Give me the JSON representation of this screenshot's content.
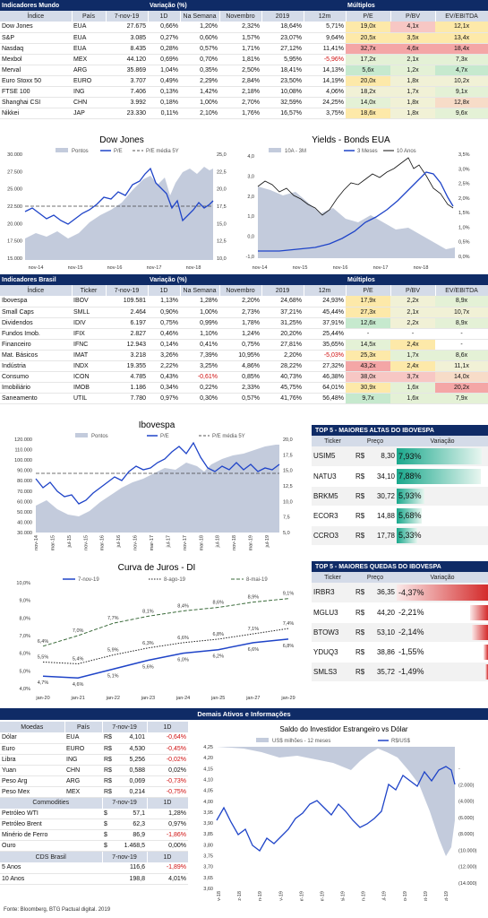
{
  "mundo": {
    "title": "Indicadores Mundo",
    "var_title": "Variação (%)",
    "mult_title": "Múltiplos",
    "cols": [
      "Índice",
      "País",
      "7-nov-19",
      "1D",
      "Na Semana",
      "Novembro",
      "2019",
      "12m",
      "P/E",
      "P/BV",
      "EV/EBITDA"
    ],
    "rows": [
      [
        "Dow Jones",
        "EUA",
        "27.675",
        "0,66%",
        "1,20%",
        "2,32%",
        "18,64%",
        "5,71%",
        "19,0x",
        "4,1x",
        "12,1x"
      ],
      [
        "S&P",
        "EUA",
        "3.085",
        "0,27%",
        "0,60%",
        "1,57%",
        "23,07%",
        "9,64%",
        "20,5x",
        "3,5x",
        "13,4x"
      ],
      [
        "Nasdaq",
        "EUA",
        "8.435",
        "0,28%",
        "0,57%",
        "1,71%",
        "27,12%",
        "11,41%",
        "32,7x",
        "4,6x",
        "18,4x"
      ],
      [
        "Mexbol",
        "MEX",
        "44.120",
        "0,69%",
        "0,70%",
        "1,81%",
        "5,95%",
        "-5,96%",
        "17,2x",
        "2,1x",
        "7,3x"
      ],
      [
        "Merval",
        "ARG",
        "35.869",
        "1,04%",
        "0,35%",
        "2,50%",
        "18,41%",
        "14,13%",
        "5,6x",
        "1,2x",
        "4,7x"
      ],
      [
        "Euro Stoxx 50",
        "EURO",
        "3.707",
        "0,49%",
        "2,29%",
        "2,84%",
        "23,50%",
        "14,19%",
        "20,0x",
        "1,8x",
        "10,2x"
      ],
      [
        "FTSE 100",
        "ING",
        "7.406",
        "0,13%",
        "1,42%",
        "2,18%",
        "10,08%",
        "4,06%",
        "18,2x",
        "1,7x",
        "9,1x"
      ],
      [
        "Shanghai CSI",
        "CHN",
        "3.992",
        "0,18%",
        "1,00%",
        "2,70%",
        "32,59%",
        "24,25%",
        "14,0x",
        "1,8x",
        "12,8x"
      ],
      [
        "Nikkei",
        "JAP",
        "23.330",
        "0,11%",
        "2,10%",
        "1,76%",
        "16,57%",
        "3,75%",
        "18,6x",
        "1,8x",
        "9,6x"
      ]
    ],
    "mult_colors": [
      [
        "#fde9a9",
        "#f7c7c4",
        "#fde9a9"
      ],
      [
        "#fde9a9",
        "#fde9a9",
        "#fde9a9"
      ],
      [
        "#f4a6a6",
        "#f4a6a6",
        "#f4a6a6"
      ],
      [
        "#e4f1d6",
        "#e4f1d6",
        "#e4f1d6"
      ],
      [
        "#c6e9ce",
        "#e4f1d6",
        "#c6e9ce"
      ],
      [
        "#fde9a9",
        "#f1f1d6",
        "#f1f1d6"
      ],
      [
        "#f1f1d6",
        "#f1f1d6",
        "#e4f1d6"
      ],
      [
        "#e4f1d6",
        "#f1f1d6",
        "#f7dcc8"
      ],
      [
        "#fde9a9",
        "#f1f1d6",
        "#e4f1d6"
      ]
    ]
  },
  "dow_chart": {
    "title": "Dow Jones",
    "legend": [
      "Pontos",
      "P/E",
      "P/E média 5Y"
    ],
    "y_left": [
      "30.000",
      "27.500",
      "25.000",
      "22.500",
      "20.000",
      "17.500",
      "15.000"
    ],
    "y_right": [
      "25,0",
      "22,5",
      "20,0",
      "17,5",
      "15,0",
      "12,5",
      "10,0"
    ],
    "x": [
      "nov-14",
      "nov-15",
      "nov-16",
      "nov-17",
      "nov-18"
    ]
  },
  "yields_chart": {
    "title": "Yields - Bonds EUA",
    "legend": [
      "10A - 3M",
      "3 Meses",
      "10 Anos"
    ],
    "y_left": [
      "4,0",
      "3,0",
      "2,0",
      "1,0",
      "0,0",
      "-1,0"
    ],
    "y_right": [
      "3,5%",
      "3,0%",
      "2,5%",
      "2,0%",
      "1,5%",
      "1,0%",
      "0,5%",
      "0,0%"
    ],
    "x": [
      "nov-14",
      "nov-15",
      "nov-16",
      "nov-17",
      "nov-18"
    ]
  },
  "brasil": {
    "title": "Indicadores Brasil",
    "var_title": "Variação (%)",
    "mult_title": "Múltiplos",
    "cols": [
      "Índice",
      "Ticker",
      "7-nov-19",
      "1D",
      "Na Semana",
      "Novembro",
      "2019",
      "12m",
      "P/E",
      "P/BV",
      "EV/EBITDA"
    ],
    "rows": [
      [
        "Ibovespa",
        "IBOV",
        "109.581",
        "1,13%",
        "1,28%",
        "2,20%",
        "24,68%",
        "24,93%",
        "17,9x",
        "2,2x",
        "8,9x"
      ],
      [
        "Small Caps",
        "SMLL",
        "2.464",
        "0,90%",
        "1,00%",
        "2,73%",
        "37,21%",
        "45,44%",
        "27,3x",
        "2,1x",
        "10,7x"
      ],
      [
        "Dividendos",
        "IDIV",
        "6.197",
        "0,75%",
        "0,99%",
        "1,78%",
        "31,25%",
        "37,91%",
        "12,6x",
        "2,2x",
        "8,9x"
      ],
      [
        "Fundos Imob.",
        "IFIX",
        "2.827",
        "0,46%",
        "1,10%",
        "1,24%",
        "20,20%",
        "25,44%",
        "-",
        "-",
        "-"
      ],
      [
        "Financeiro",
        "IFNC",
        "12.943",
        "0,14%",
        "0,41%",
        "0,75%",
        "27,81%",
        "35,65%",
        "14,5x",
        "2,4x",
        "-"
      ],
      [
        "Mat. Básicos",
        "IMAT",
        "3.218",
        "3,26%",
        "7,39%",
        "10,95%",
        "2,20%",
        "-5,03%",
        "25,3x",
        "1,7x",
        "8,6x"
      ],
      [
        "Indústria",
        "INDX",
        "19.355",
        "2,22%",
        "3,25%",
        "4,86%",
        "28,22%",
        "27,32%",
        "43,2x",
        "2,4x",
        "11,1x"
      ],
      [
        "Consumo",
        "ICON",
        "4.785",
        "0,43%",
        "-0,61%",
        "0,85%",
        "40,73%",
        "46,38%",
        "38,0x",
        "3,7x",
        "14,0x"
      ],
      [
        "Imobiliário",
        "IMOB",
        "1.186",
        "0,34%",
        "0,22%",
        "2,33%",
        "45,75%",
        "64,01%",
        "30,9x",
        "1,6x",
        "20,2x"
      ],
      [
        "Saneamento",
        "UTIL",
        "7.780",
        "0,97%",
        "0,30%",
        "0,57%",
        "41,76%",
        "56,48%",
        "9,7x",
        "1,6x",
        "7,9x"
      ]
    ],
    "mult_colors": [
      [
        "#fde9a9",
        "#f1f1d6",
        "#e4f1d6"
      ],
      [
        "#fde9a9",
        "#f1f1d6",
        "#f1f1d6"
      ],
      [
        "#c6e9ce",
        "#f1f1d6",
        "#e4f1d6"
      ],
      [
        "#ffffff",
        "#ffffff",
        "#ffffff"
      ],
      [
        "#e4f1d6",
        "#fde9a9",
        "#ffffff"
      ],
      [
        "#fde9a9",
        "#e4f1d6",
        "#e4f1d6"
      ],
      [
        "#f4a6a6",
        "#fde9a9",
        "#f1f1d6"
      ],
      [
        "#f7c7c4",
        "#f7c7c4",
        "#f7dcc8"
      ],
      [
        "#fde9a9",
        "#e4f1d6",
        "#f4a6a6"
      ],
      [
        "#c6e9ce",
        "#e4f1d6",
        "#e4f1d6"
      ]
    ]
  },
  "ibov_chart": {
    "title": "Ibovespa",
    "legend": [
      "Pontos",
      "P/E",
      "P/E média 5Y"
    ],
    "y_left": [
      "120.000",
      "110.000",
      "100.000",
      "90.000",
      "80.000",
      "70.000",
      "60.000",
      "50.000",
      "40.000",
      "30.000"
    ],
    "y_right": [
      "20,0",
      "17,5",
      "15,0",
      "12,5",
      "10,0",
      "7,5",
      "5,0"
    ],
    "x": [
      "nov-14",
      "mar-15",
      "jul-15",
      "nov-15",
      "mar-16",
      "jul-16",
      "nov-16",
      "mar-17",
      "jul-17",
      "nov-17",
      "mar-18",
      "jul-18",
      "nov-18",
      "mar-19",
      "jul-19"
    ]
  },
  "top5_altas": {
    "title": "TOP 5 - MAIORES ALTAS DO IBOVESPA",
    "cols": [
      "Ticker",
      "Preço",
      "Variação"
    ],
    "rows": [
      {
        "ticker": "USIM5",
        "cur": "R$",
        "price": "8,30",
        "var": "7,93%",
        "pct": 93
      },
      {
        "ticker": "NATU3",
        "cur": "R$",
        "price": "34,10",
        "var": "7,88%",
        "pct": 92
      },
      {
        "ticker": "BRKM5",
        "cur": "R$",
        "price": "30,72",
        "var": "5,93%",
        "pct": 30
      },
      {
        "ticker": "ECOR3",
        "cur": "R$",
        "price": "14,88",
        "var": "5,68%",
        "pct": 27
      },
      {
        "ticker": "CCRO3",
        "cur": "R$",
        "price": "17,78",
        "var": "5,33%",
        "pct": 23
      }
    ]
  },
  "top5_quedas": {
    "title": "TOP 5 - MAIORES QUEDAS DO IBOVESPA",
    "cols": [
      "Ticker",
      "Preço",
      "Variação"
    ],
    "rows": [
      {
        "ticker": "IRBR3",
        "cur": "R$",
        "price": "36,35",
        "var": "-4,37%",
        "pct": 100
      },
      {
        "ticker": "MGLU3",
        "cur": "R$",
        "price": "44,20",
        "var": "-2,21%",
        "pct": 20
      },
      {
        "ticker": "BTOW3",
        "cur": "R$",
        "price": "53,10",
        "var": "-2,14%",
        "pct": 18
      },
      {
        "ticker": "YDUQ3",
        "cur": "R$",
        "price": "38,86",
        "var": "-1,55%",
        "pct": 5
      },
      {
        "ticker": "SMLS3",
        "cur": "R$",
        "price": "35,72",
        "var": "-1,49%",
        "pct": 3
      }
    ]
  },
  "juros_chart": {
    "title": "Curva de Juros - DI",
    "legend": [
      "7-nov-19",
      "8-ago-19",
      "8-mai-19"
    ],
    "y": [
      "10,0%",
      "9,0%",
      "8,0%",
      "7,0%",
      "6,0%",
      "5,0%",
      "4,0%"
    ],
    "x": [
      "jan-20",
      "jan-21",
      "jan-22",
      "jan-23",
      "jan-24",
      "jan-25",
      "jan-27",
      "jan-29"
    ],
    "series": [
      {
        "name": "7-nov-19",
        "values": [
          4.7,
          4.6,
          5.1,
          5.6,
          6.0,
          6.2,
          6.6,
          6.8
        ]
      },
      {
        "name": "8-ago-19",
        "values": [
          5.5,
          5.4,
          5.9,
          6.3,
          6.6,
          6.8,
          7.1,
          7.4
        ]
      },
      {
        "name": "8-mai-19",
        "values": [
          6.4,
          7.0,
          7.7,
          8.1,
          8.4,
          8.6,
          8.9,
          9.1
        ]
      }
    ],
    "labels": [
      [
        "4,7%",
        "4,6%",
        "5,1%",
        "5,6%",
        "6,0%",
        "6,2%",
        "6,6%",
        "6,8%"
      ],
      [
        "5,5%",
        "5,4%",
        "5,9%",
        "6,3%",
        "6,6%",
        "6,8%",
        "7,1%",
        "7,4%"
      ],
      [
        "6,4%",
        "7,0%",
        "7,7%",
        "8,1%",
        "8,4%",
        "8,6%",
        "8,9%",
        "9,1%"
      ]
    ]
  },
  "demais": {
    "title": "Demais Ativos e Informações",
    "moedas_cols": [
      "Moedas",
      "País",
      "7-nov-19",
      "1D"
    ],
    "moedas": [
      [
        "Dólar",
        "EUA",
        "R$",
        "4,101",
        "-0,64%"
      ],
      [
        "Euro",
        "EURO",
        "R$",
        "4,530",
        "-0,45%"
      ],
      [
        "Libra",
        "ING",
        "R$",
        "5,256",
        "-0,02%"
      ],
      [
        "Yuan",
        "CHN",
        "R$",
        "0,588",
        "0,02%"
      ],
      [
        "Peso Arg",
        "ARG",
        "R$",
        "0,069",
        "-0,73%"
      ],
      [
        "Peso Mex",
        "MEX",
        "R$",
        "0,214",
        "-0,75%"
      ]
    ],
    "commod_cols": [
      "Commodities",
      "7-nov-19",
      "1D"
    ],
    "commod": [
      [
        "Petróleo WTI",
        "$",
        "57,1",
        "1,28%"
      ],
      [
        "Petróleo Brent",
        "$",
        "62,3",
        "0,97%"
      ],
      [
        "Minério de Ferro",
        "$",
        "86,9",
        "-1,86%"
      ],
      [
        "Ouro",
        "$",
        "1.468,5",
        "0,00%"
      ]
    ],
    "cds_cols": [
      "CDS Brasil",
      "7-nov-19",
      "1D"
    ],
    "cds": [
      [
        "5 Anos",
        "116,6",
        "-1,89%"
      ],
      [
        "10 Anos",
        "198,8",
        "4,01%"
      ]
    ]
  },
  "saldo_chart": {
    "title": "Saldo do Investidor Estrangeiro vs Dólar",
    "legend": [
      "US$ milhões - 12 meses",
      "R$/US$"
    ],
    "y_left": [
      "4,25",
      "4,20",
      "4,15",
      "4,10",
      "4,05",
      "4,00",
      "3,95",
      "3,90",
      "3,85",
      "3,80",
      "3,75",
      "3,70",
      "3,65",
      "3,60"
    ],
    "y_right": [
      "-",
      "(2.000)",
      "(4.000)",
      "(6.000)",
      "(8.000)",
      "(10.000)",
      "(12.000)",
      "(14.000)"
    ],
    "x": [
      "7-nov-18",
      "7-dez-18",
      "7-jan-19",
      "7-fev-19",
      "7-mar-19",
      "7-abr-19",
      "7-mai-19",
      "7-jun-19",
      "7-jul-19",
      "7-ago-19",
      "7-set-19",
      "7-out-19"
    ]
  },
  "footer": "Fonte: Bloomberg, BTG Pactual digital. 2019"
}
